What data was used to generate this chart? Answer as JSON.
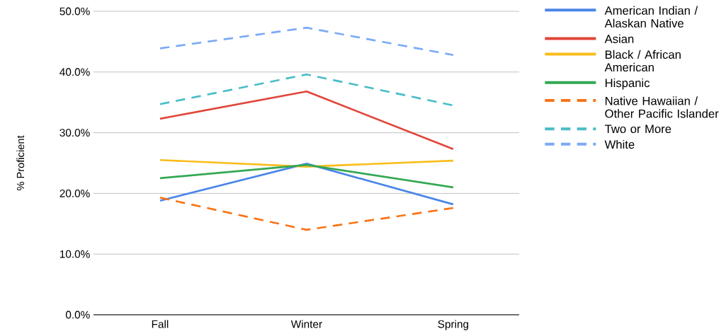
{
  "chart_data": {
    "type": "line",
    "ylabel": "% Proficient",
    "categories": [
      "Fall",
      "Winter",
      "Spring"
    ],
    "series": [
      {
        "name": "American Indian / Alaskan Native",
        "color": "#4a86e8",
        "values": [
          18.8,
          24.9,
          18.2
        ]
      },
      {
        "name": "Asian",
        "color": "#e0463a",
        "values": [
          32.3,
          36.8,
          27.3
        ]
      },
      {
        "name": "Black / African American",
        "color": "#f9bd1c",
        "values": [
          25.5,
          24.4,
          25.4
        ]
      },
      {
        "name": "Hispanic",
        "color": "#33a853",
        "values": [
          22.5,
          24.7,
          21.0
        ]
      },
      {
        "name": "Native Hawaiian / Other Pacific Islander",
        "color": "#fa7316",
        "values": [
          19.3,
          14.0,
          17.6
        ],
        "line_style": "dashed"
      },
      {
        "name": "Two or More",
        "color": "#46bdc6",
        "values": [
          34.7,
          39.6,
          34.5
        ],
        "line_style": "dashed"
      },
      {
        "name": "White",
        "color": "#7baaf7",
        "values": [
          43.9,
          47.3,
          42.8
        ],
        "line_style": "dashed"
      }
    ],
    "ylim": [
      0,
      50
    ],
    "yticks": [
      {
        "value": 0,
        "label": "0.0%"
      },
      {
        "value": 10,
        "label": "10.0%"
      },
      {
        "value": 20,
        "label": "20.0%"
      },
      {
        "value": 30,
        "label": "30.0%"
      },
      {
        "value": 40,
        "label": "40.0%"
      },
      {
        "value": 50,
        "label": "50.0%"
      }
    ],
    "grid": "y",
    "legend": "right",
    "marker": "none"
  }
}
